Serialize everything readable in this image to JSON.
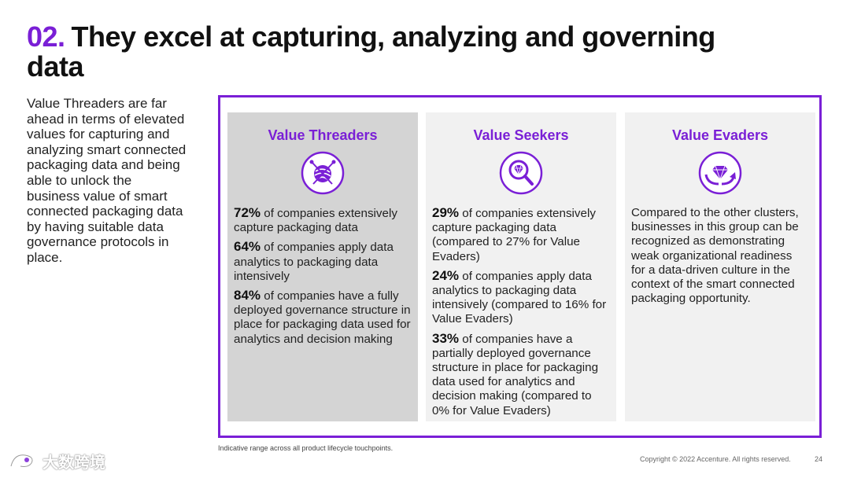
{
  "title": {
    "number": "02.",
    "text": "They excel at capturing, analyzing and governing data"
  },
  "intro": "Value Threaders are far ahead in terms of elevated values for capturing and analyzing smart connected packaging data and being able to unlock the business value of smart connected packaging data by having suitable data governance protocols in place.",
  "colors": {
    "accent": "#7a1fd6",
    "highlight_card": "#d4d4d4",
    "card": "#f1f1f1"
  },
  "cards": [
    {
      "title": "Value Threaders",
      "icon": "yarn-ball-with-needles-icon",
      "stats": [
        {
          "value": "72%",
          "text": " of companies extensively capture packaging data"
        },
        {
          "value": "64%",
          "text": " of companies apply data analytics to packaging data intensively"
        },
        {
          "value": "84%",
          "text": " of companies have a fully deployed governance structure in place for packaging data used for analytics and decision making"
        }
      ]
    },
    {
      "title": "Value Seekers",
      "icon": "magnifying-glass-diamond-icon",
      "stats": [
        {
          "value": "29%",
          "text": " of companies extensively capture packaging data (compared to 27% for Value Evaders)"
        },
        {
          "value": "24%",
          "text": " of companies apply data analytics to packaging data intensively (compared to 16% for Value Evaders)"
        },
        {
          "value": "33%",
          "text": " of companies have a partially deployed governance structure in place for packaging data used for analytics and decision making (compared to 0% for Value Evaders)"
        }
      ]
    },
    {
      "title": "Value Evaders",
      "icon": "diamond-arrow-icon",
      "text": "Compared to the other clusters, businesses in this group can be recognized as demonstrating weak organizational readiness for a data-driven culture in the context of the smart connected packaging opportunity."
    }
  ],
  "footnote": "Indicative range across all product lifecycle touchpoints.",
  "copyright": "Copyright © 2022 Accenture. All rights reserved.",
  "page_number": "24",
  "watermark": "大数跨境"
}
